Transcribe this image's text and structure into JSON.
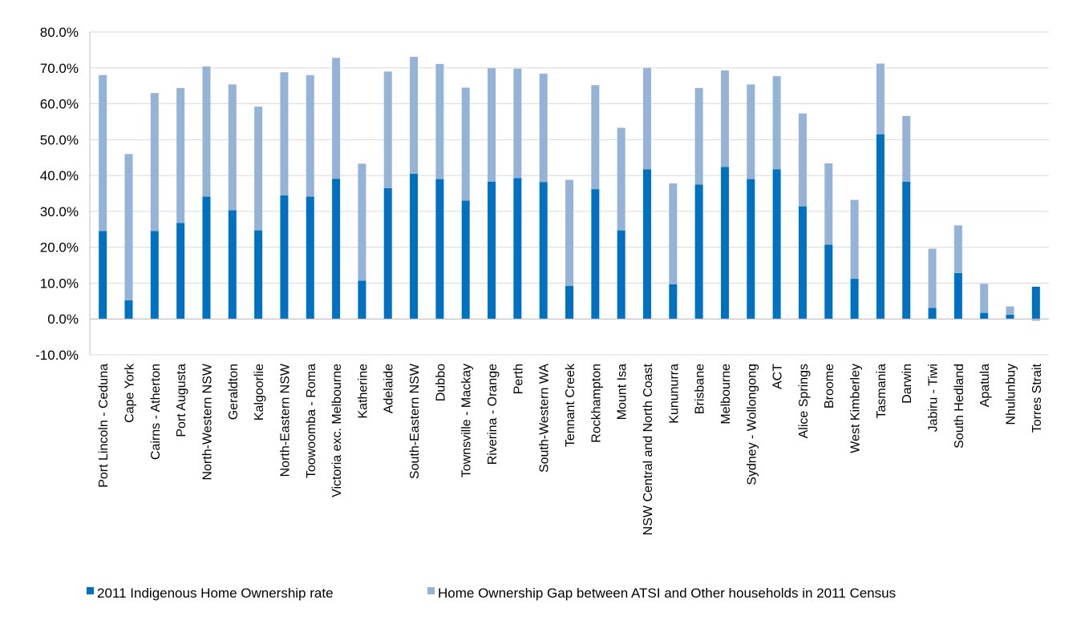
{
  "chart_data": {
    "type": "bar",
    "stacked": true,
    "title": "",
    "xlabel": "",
    "ylabel": "",
    "ylim": [
      -0.1,
      0.8
    ],
    "y_tick_step": 0.1,
    "y_tick_format": "percent_1dp",
    "grid": true,
    "legend_position": "bottom",
    "categories": [
      "Port Lincoln - Ceduna",
      "Cape York",
      "Cairns - Atherton",
      "Port Augusta",
      "North-Western NSW",
      "Geraldton",
      "Kalgoorlie",
      "North-Eastern NSW",
      "Toowoomba - Roma",
      "Victoria exc. Melbourne",
      "Katherine",
      "Adelaide",
      "South-Eastern NSW",
      "Dubbo",
      "Townsville - Mackay",
      "Riverina - Orange",
      "Perth",
      "South-Western WA",
      "Tennant Creek",
      "Rockhampton",
      "Mount Isa",
      "NSW Central and North Coast",
      "Kununurra",
      "Brisbane",
      "Melbourne",
      "Sydney - Wollongong",
      "ACT",
      "Alice Springs",
      "Broome",
      "West Kimberley",
      "Tasmania",
      "Darwin",
      "Jabiru - Tiwi",
      "South Hedland",
      "Apatula",
      "Nhulunbuy",
      "Torres Strait"
    ],
    "series": [
      {
        "name": "2011 Indigenous Home Ownership rate",
        "color": "#0070c0",
        "values": [
          0.245,
          0.052,
          0.245,
          0.268,
          0.341,
          0.303,
          0.247,
          0.345,
          0.341,
          0.391,
          0.107,
          0.365,
          0.405,
          0.39,
          0.33,
          0.383,
          0.393,
          0.382,
          0.092,
          0.362,
          0.247,
          0.417,
          0.097,
          0.375,
          0.424,
          0.39,
          0.417,
          0.314,
          0.207,
          0.112,
          0.515,
          0.383,
          0.031,
          0.128,
          0.017,
          0.012,
          0.09
        ]
      },
      {
        "name": "Home Ownership Gap between ATSI and Other households in 2011 Census",
        "color": "#95b3d7",
        "values": [
          0.435,
          0.408,
          0.385,
          0.376,
          0.363,
          0.351,
          0.345,
          0.343,
          0.339,
          0.337,
          0.326,
          0.325,
          0.326,
          0.321,
          0.315,
          0.316,
          0.305,
          0.302,
          0.296,
          0.29,
          0.286,
          0.283,
          0.281,
          0.269,
          0.269,
          0.264,
          0.26,
          0.259,
          0.227,
          0.22,
          0.197,
          0.183,
          0.165,
          0.133,
          0.081,
          0.023,
          -0.005
        ]
      }
    ]
  }
}
